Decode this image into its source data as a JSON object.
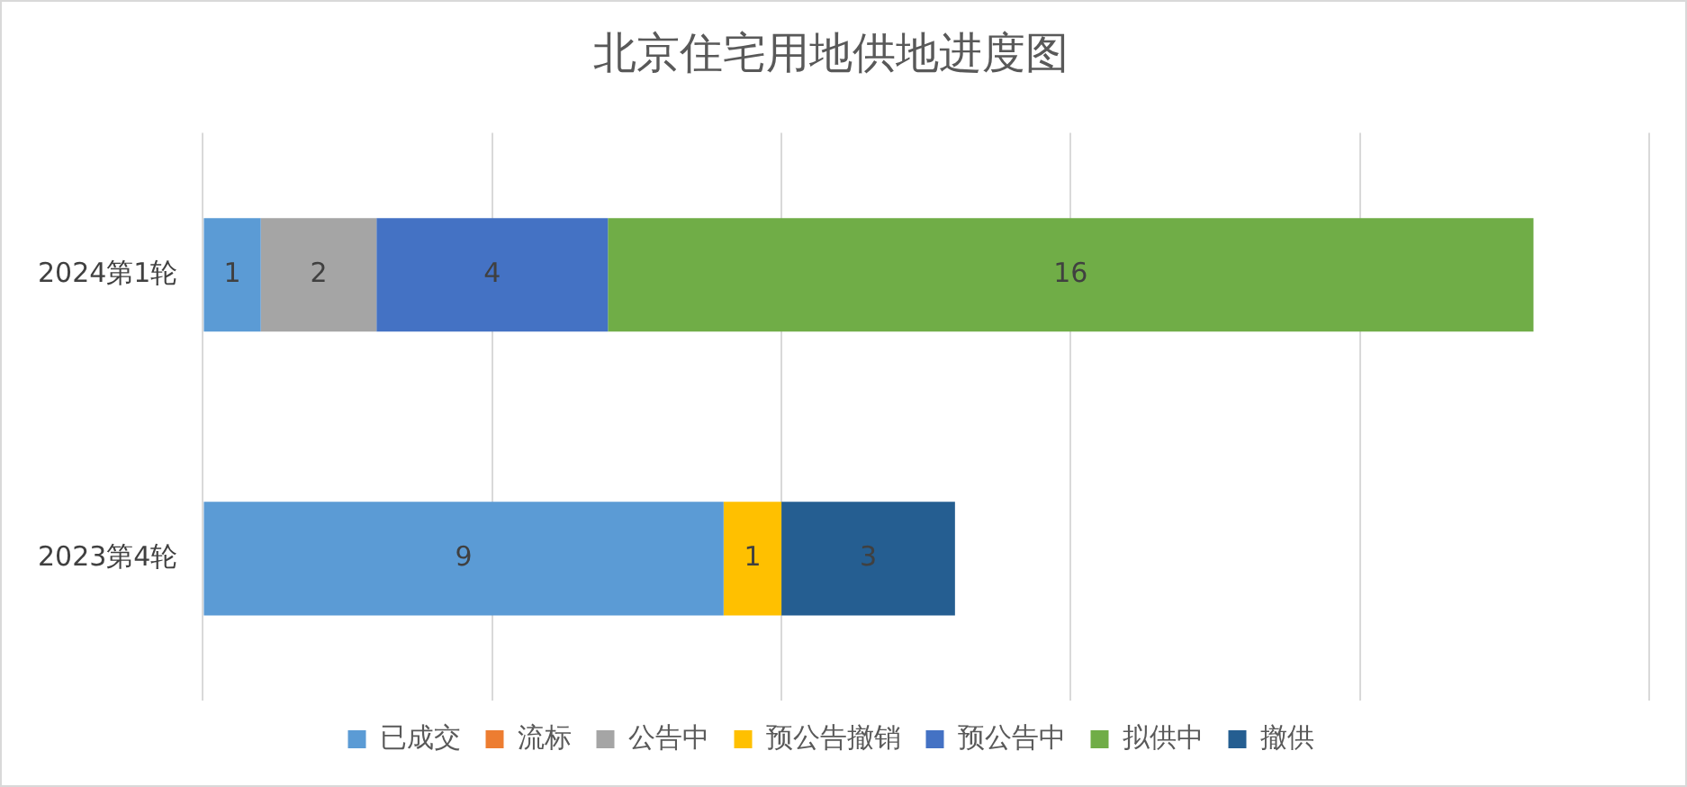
{
  "chart_data": {
    "type": "bar",
    "title": "北京住宅用地供地进度图",
    "orientation": "horizontal",
    "stacked": true,
    "categories": [
      "2024第1轮",
      "2023第4轮"
    ],
    "series": [
      {
        "name": "已成交",
        "color": "#5b9bd5",
        "values": [
          1,
          9
        ]
      },
      {
        "name": "流标",
        "color": "#ed7d31",
        "values": [
          null,
          null
        ]
      },
      {
        "name": "公告中",
        "color": "#a5a5a5",
        "values": [
          2,
          null
        ]
      },
      {
        "name": "预公告撤销",
        "color": "#ffc000",
        "values": [
          null,
          1
        ]
      },
      {
        "name": "预公告中",
        "color": "#4472c4",
        "values": [
          4,
          null
        ]
      },
      {
        "name": "拟供中",
        "color": "#70ad47",
        "values": [
          16,
          null
        ]
      },
      {
        "name": "撤供",
        "color": "#255e91",
        "values": [
          null,
          3
        ]
      }
    ],
    "xlim": [
      0,
      25
    ],
    "xticks": [
      {
        "value": 0,
        "label": null
      },
      {
        "value": 5,
        "label": null
      },
      {
        "value": 10,
        "label": null
      },
      {
        "value": 15,
        "label": null
      },
      {
        "value": 20,
        "label": null
      },
      {
        "value": 25,
        "label": null
      }
    ],
    "tick_labels": "y",
    "grid": "x",
    "data_labels": true,
    "legend": "bottom"
  }
}
